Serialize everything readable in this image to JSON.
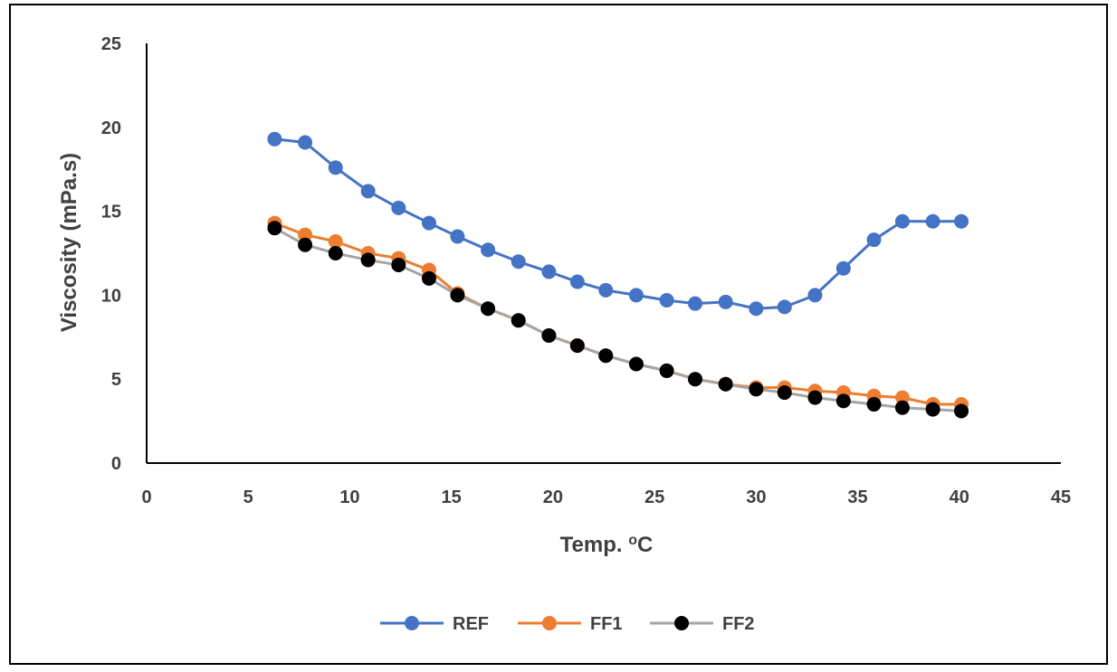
{
  "chart_data": {
    "type": "line",
    "title": "",
    "xlabel": "Temp. ",
    "xlabel_superscript": "o",
    "xlabel_unit": "C",
    "ylabel": "Viscosity (mPa.s)",
    "xlim": [
      0,
      45
    ],
    "ylim": [
      0,
      25
    ],
    "x_ticks": [
      0,
      5,
      10,
      15,
      20,
      25,
      30,
      35,
      40,
      45
    ],
    "y_ticks": [
      0,
      5,
      10,
      15,
      20,
      25
    ],
    "grid": false,
    "legend_position": "bottom",
    "x": [
      6.3,
      7.8,
      9.3,
      10.9,
      12.4,
      13.9,
      15.3,
      16.8,
      18.3,
      19.8,
      21.2,
      22.6,
      24.1,
      25.6,
      27.0,
      28.5,
      30.0,
      31.4,
      32.9,
      34.3,
      35.8,
      37.2,
      38.7,
      40.1
    ],
    "series": [
      {
        "name": "REF",
        "color": "#4472C4",
        "values": [
          19.3,
          19.1,
          17.6,
          16.2,
          15.2,
          14.3,
          13.5,
          12.7,
          12.0,
          11.4,
          10.8,
          10.3,
          10.0,
          9.7,
          9.5,
          9.6,
          9.2,
          9.3,
          10.0,
          11.6,
          13.3,
          14.4,
          14.4,
          14.4
        ]
      },
      {
        "name": "FF1",
        "color": "#ED7D31",
        "values": [
          14.3,
          13.6,
          13.2,
          12.5,
          12.2,
          11.5,
          10.1,
          9.2,
          8.5,
          7.6,
          7.0,
          6.4,
          5.9,
          5.5,
          5.0,
          4.7,
          4.5,
          4.5,
          4.3,
          4.2,
          4.0,
          3.9,
          3.5,
          3.5
        ]
      },
      {
        "name": "FF2",
        "color": "#000000",
        "line_color": "#A5A5A5",
        "values": [
          14.0,
          13.0,
          12.5,
          12.1,
          11.8,
          11.0,
          10.0,
          9.2,
          8.5,
          7.6,
          7.0,
          6.4,
          5.9,
          5.5,
          5.0,
          4.7,
          4.4,
          4.2,
          3.9,
          3.7,
          3.5,
          3.3,
          3.2,
          3.1
        ]
      }
    ]
  }
}
